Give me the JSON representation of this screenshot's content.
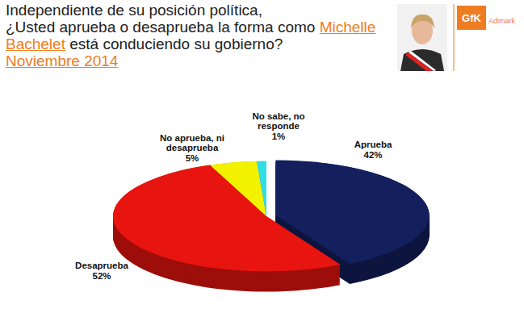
{
  "chart_data": {
    "type": "pie",
    "title": [
      "Independiente de su posición política,",
      "¿Usted aprueba o desaprueba la forma como ",
      "Michelle Bachelet",
      " está conduciendo su gobierno?"
    ],
    "subtitle": "Noviembre 2014",
    "annotations": [
      "GfK",
      "Adimark"
    ],
    "categories": [
      "Aprueba",
      "Desaprueba",
      "No aprueba, ni desaprueba",
      "No sabe, no responde"
    ],
    "values": [
      42,
      52,
      5,
      1
    ],
    "value_labels": [
      "42%",
      "52%",
      "5%",
      "1%"
    ],
    "colors": [
      "#14205e",
      "#e8140f",
      "#f2f200",
      "#33dde6"
    ],
    "data_labels": true
  }
}
